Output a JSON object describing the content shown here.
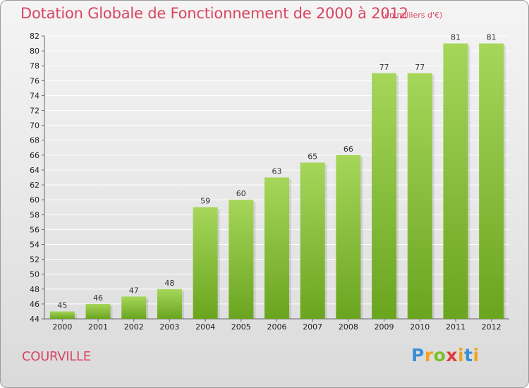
{
  "header": {
    "title": "Dotation Globale de Fonctionnement de 2000 à 2012",
    "subtitle": "(en milliers d'€)"
  },
  "commune": "COURVILLE",
  "logo": {
    "text": "Proxiti"
  },
  "colors": {
    "bar_light": "#a6d65a",
    "bar_dark": "#6aa51f",
    "title": "#d94560",
    "grid": "#ffffff"
  },
  "chart_data": {
    "type": "bar",
    "categories": [
      "2000",
      "2001",
      "2002",
      "2003",
      "2004",
      "2005",
      "2006",
      "2007",
      "2008",
      "2009",
      "2010",
      "2011",
      "2012"
    ],
    "values": [
      45,
      46,
      47,
      48,
      59,
      60,
      63,
      65,
      66,
      77,
      77,
      81,
      81
    ],
    "title": "Dotation Globale de Fonctionnement de 2000 à 2012",
    "subtitle": "(en milliers d'€)",
    "xlabel": "",
    "ylabel": "",
    "ylim": [
      44,
      82
    ],
    "yticks": [
      44,
      46,
      48,
      50,
      52,
      54,
      56,
      58,
      60,
      62,
      64,
      66,
      68,
      70,
      72,
      74,
      76,
      78,
      80,
      82
    ],
    "grid": true,
    "legend": "none"
  }
}
